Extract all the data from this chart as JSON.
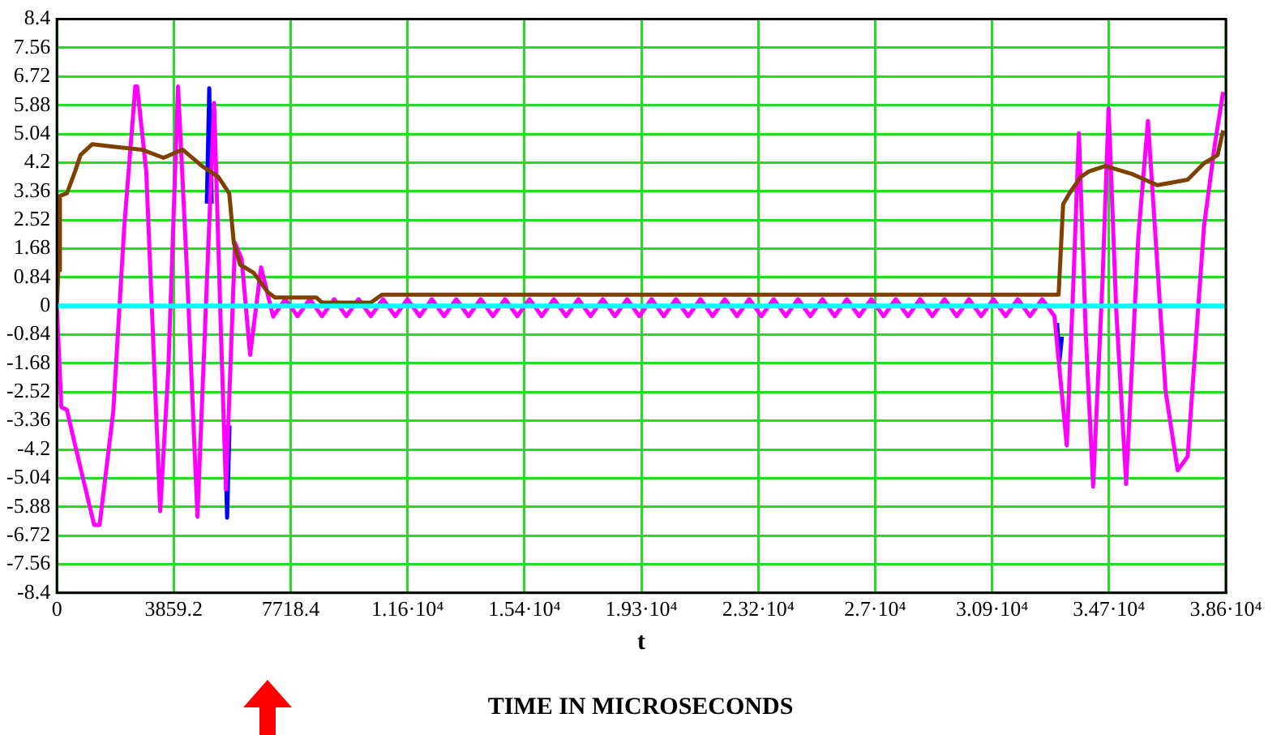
{
  "chart_data": {
    "type": "line",
    "xlabel": "t",
    "annotations": [
      "TIME IN MICROSECONDS"
    ],
    "xlim": [
      0,
      38592
    ],
    "xticks": [
      0,
      3859.2,
      7718.4,
      {
        "value": 11577.6,
        "label": "1.16·10⁴"
      },
      {
        "value": 15436.8,
        "label": "1.54·10⁴"
      },
      {
        "value": 19296,
        "label": "1.93·10⁴"
      },
      {
        "value": 23155.2,
        "label": "2.32·10⁴"
      },
      {
        "value": 27014.4,
        "label": "2.7·10⁴"
      },
      {
        "value": 30873.6,
        "label": "3.09·10⁴"
      },
      {
        "value": 34732.8,
        "label": "3.47·10⁴"
      },
      {
        "value": 38592,
        "label": "3.86·10⁴"
      }
    ],
    "ylim": [
      -8.4,
      8.4
    ],
    "yticks": [
      -8.4,
      -7.56,
      -6.72,
      -5.88,
      -5.04,
      -4.2,
      -3.36,
      -2.52,
      -1.68,
      -0.84,
      0,
      0.84,
      1.68,
      2.52,
      3.36,
      4.2,
      5.04,
      5.88,
      6.72,
      7.56,
      8.4
    ],
    "grid": true,
    "legend": false,
    "marker": "none",
    "line_style": "solid",
    "ref_lines": [
      {
        "axis": "y",
        "value": 0,
        "color": "#00ffff"
      }
    ],
    "series": [
      {
        "color": "#0000ff",
        "x": [
          4950,
          5030,
          5110,
          5300,
          5540,
          5620,
          5700,
          20000,
          33020,
          33100,
          33180
        ],
        "values": [
          3.0,
          6.38,
          3.0,
          null,
          -3.5,
          -6.2,
          -3.5,
          null,
          -0.5,
          -1.6,
          -0.9
        ]
      },
      {
        "color": "#ff00ff",
        "x": [
          0,
          146,
          330,
          600,
          1230,
          1410,
          1860,
          2225,
          2590,
          2650,
          2950,
          3410,
          3680,
          4000,
          4310,
          4640,
          4880,
          5190,
          5420,
          5580,
          5880,
          6100,
          6380,
          6740,
          7140,
          7543,
          7946,
          8349,
          8752,
          9155,
          9558,
          9961,
          10364,
          10767,
          11170,
          11573,
          11976,
          12379,
          12782,
          13185,
          13588,
          13991,
          14394,
          14797,
          15200,
          15603,
          16006,
          16409,
          16812,
          17215,
          17618,
          18021,
          18424,
          18827,
          19230,
          19633,
          20036,
          20439,
          20842,
          21245,
          21648,
          22051,
          22454,
          22857,
          23260,
          23663,
          24066,
          24469,
          24872,
          25275,
          25678,
          26081,
          26484,
          26887,
          27290,
          27693,
          28096,
          28499,
          28902,
          29305,
          29708,
          30111,
          30514,
          30917,
          31320,
          31723,
          32126,
          32529,
          32932,
          33340,
          33560,
          33740,
          33970,
          34210,
          34520,
          34720,
          34970,
          35300,
          35700,
          36020,
          36600,
          37000,
          37330,
          37870,
          38230,
          38500
        ],
        "values": [
          0,
          -2.96,
          -3.04,
          -4.07,
          -6.41,
          -6.41,
          -3.1,
          2.33,
          6.43,
          6.43,
          3.94,
          -6.01,
          -1.84,
          6.43,
          0.73,
          -6.17,
          -0.88,
          5.95,
          -0.88,
          -5.37,
          1.85,
          1.37,
          -1.43,
          1.13,
          -0.31,
          0.2,
          -0.3,
          0.2,
          -0.3,
          0.2,
          -0.3,
          0.2,
          -0.3,
          0.2,
          -0.3,
          0.2,
          -0.3,
          0.2,
          -0.3,
          0.2,
          -0.3,
          0.2,
          -0.3,
          0.2,
          -0.3,
          0.2,
          -0.3,
          0.2,
          -0.3,
          0.2,
          -0.3,
          0.2,
          -0.3,
          0.2,
          -0.3,
          0.2,
          -0.3,
          0.2,
          -0.3,
          0.2,
          -0.3,
          0.2,
          -0.3,
          0.2,
          -0.3,
          0.2,
          -0.3,
          0.2,
          -0.3,
          0.2,
          -0.3,
          0.2,
          -0.3,
          0.2,
          -0.3,
          0.2,
          -0.3,
          0.2,
          -0.3,
          0.2,
          -0.3,
          0.2,
          -0.3,
          0.2,
          -0.3,
          0.2,
          -0.3,
          0.2,
          -0.3,
          -4.08,
          0.73,
          5.06,
          -0.88,
          -5.29,
          0.73,
          5.79,
          -0.07,
          -5.21,
          2.01,
          5.42,
          -2.48,
          -4.81,
          -4.41,
          2.33,
          4.74,
          6.27
        ]
      },
      {
        "color": "#804000",
        "x": [
          0,
          50,
          100,
          330,
          600,
          780,
          1170,
          1910,
          2800,
          3520,
          4150,
          4790,
          5330,
          5690,
          5840,
          6050,
          6500,
          6960,
          7200,
          8560,
          8750,
          10370,
          10730,
          32600,
          33070,
          33220,
          33430,
          33800,
          34070,
          34610,
          35510,
          36330,
          37330,
          37870,
          38320,
          38500
        ],
        "values": [
          0,
          1.05,
          3.22,
          3.3,
          3.94,
          4.42,
          4.74,
          4.66,
          4.58,
          4.34,
          4.58,
          4.1,
          3.78,
          3.3,
          1.85,
          1.21,
          0.97,
          0.41,
          0.25,
          0.25,
          0.1,
          0.1,
          0.33,
          0.33,
          0.33,
          2.98,
          3.3,
          3.78,
          3.94,
          4.1,
          3.86,
          3.54,
          3.7,
          4.18,
          4.42,
          5.14
        ]
      }
    ]
  }
}
